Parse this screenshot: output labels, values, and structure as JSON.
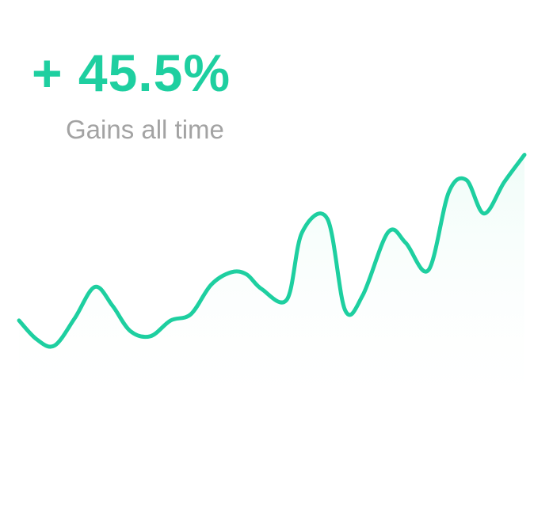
{
  "summary": {
    "value": "+ 45.5%",
    "caption": "Gains all time"
  },
  "colors": {
    "accent": "#1ECFA0",
    "caption": "#A3A3A3",
    "fill_top": "#E9FBF5",
    "background": "#FFFFFF"
  },
  "chart_data": {
    "type": "area",
    "title": "",
    "xlabel": "",
    "ylabel": "",
    "grid": false,
    "legend": "none",
    "axes_visible": false,
    "x": [
      0,
      0.7,
      1.4,
      2.2,
      3.0,
      3.7,
      4.4,
      5.2,
      6.0,
      6.8,
      7.6,
      8.4,
      9.0,
      9.6,
      10.6,
      11.2,
      12.2,
      12.9,
      13.6,
      14.6,
      15.3,
      16.2,
      17.0,
      17.7,
      18.4,
      19.2,
      20.0
    ],
    "series": [
      {
        "values": [
          28,
          10,
          4,
          30,
          60,
          42,
          18,
          13,
          28,
          34,
          62,
          74,
          72,
          58,
          48,
          112,
          125,
          38,
          52,
          112,
          102,
          76,
          150,
          162,
          130,
          160,
          186
        ]
      }
    ],
    "ylim": [
      0,
      200
    ]
  }
}
